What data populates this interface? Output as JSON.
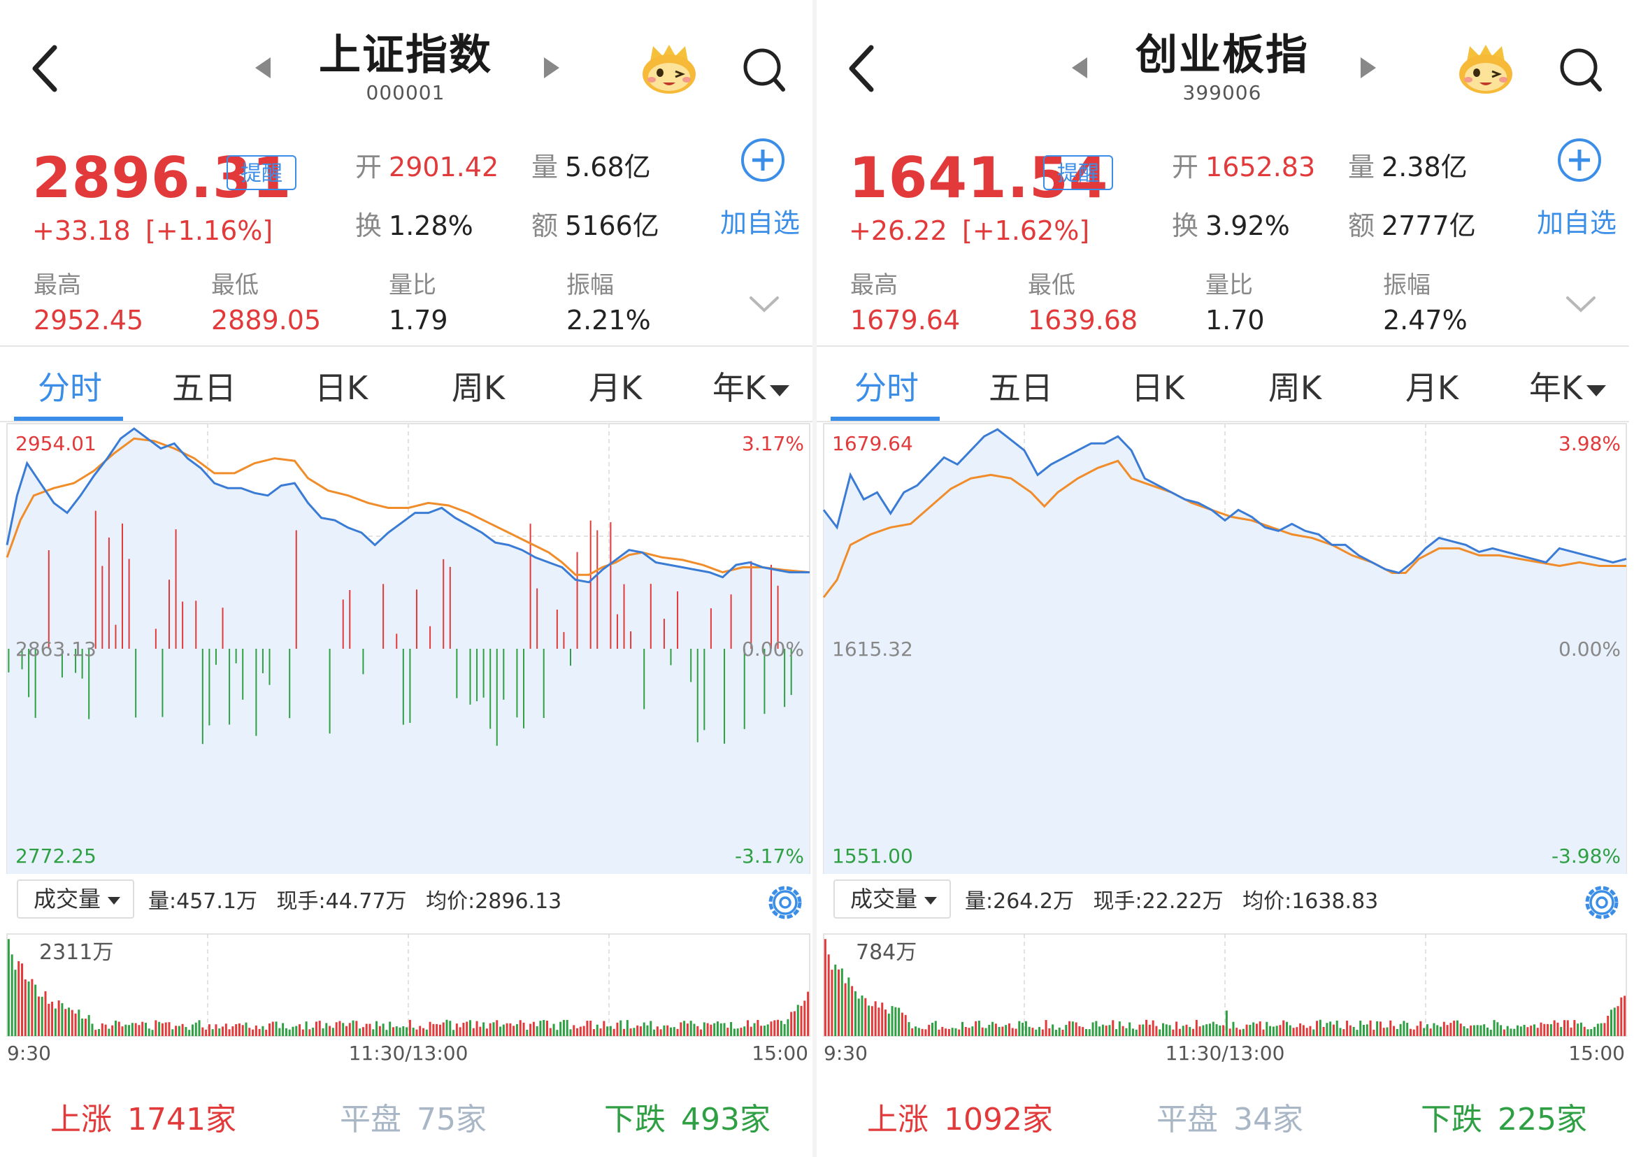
{
  "colors": {
    "up": "#e23a3a",
    "down": "#2ea043",
    "accent": "#3b8ee8",
    "price_line": "#3a7bd5",
    "avg_line": "#f08c2a",
    "fill": "#e8f1fc",
    "grid": "#d9d9d9"
  },
  "icons": {
    "back": "back-chevron-icon",
    "prev": "prev-triangle-icon",
    "next": "next-triangle-icon",
    "mascot": "mascot-icon",
    "search": "search-icon",
    "add": "plus-circle-icon",
    "expand": "chevron-down-icon",
    "settings": "gear-icon"
  },
  "tabs": [
    "分时",
    "五日",
    "日K",
    "周K",
    "月K",
    "年K"
  ],
  "labels": {
    "open": "开",
    "volume": "量",
    "turnover": "换",
    "amount": "额",
    "high": "最高",
    "low": "最低",
    "vol_ratio": "量比",
    "amplitude": "振幅",
    "alert": "提醒",
    "add_watch": "加自选",
    "vol_select": "成交量",
    "up": "上涨",
    "flat": "平盘",
    "down": "下跌"
  },
  "panels": [
    {
      "title": "上证指数",
      "code": "000001",
      "price": "2896.31",
      "change": "+33.18",
      "change_pct": "[+1.16%]",
      "open": "2901.42",
      "volume": "5.68亿",
      "turnover": "1.28%",
      "amount": "5166亿",
      "high": "2952.45",
      "low": "2889.05",
      "vol_ratio": "1.79",
      "amplitude": "2.21%",
      "axis": {
        "top_left": "2954.01",
        "top_right": "3.17%",
        "mid_left": "2863.13",
        "mid_right": "0.00%",
        "bot_left": "2772.25",
        "bot_right": "-3.17%"
      },
      "vol_stats": {
        "vol": "量:457.1万",
        "now": "现手:44.77万",
        "avg": "均价:2896.13"
      },
      "vol_max": "2311万",
      "time": {
        "start": "9:30",
        "mid": "11:30/13:00",
        "end": "15:00"
      },
      "breadth": {
        "up_count": "1741家",
        "flat_count": "75家",
        "down_count": "493家"
      },
      "chart_data": {
        "type": "line",
        "ylim": [
          2772.25,
          2954.01
        ],
        "base": 2863.13,
        "x_range": [
          0,
          240
        ],
        "series": [
          {
            "role": "price",
            "points": [
              [
                0,
                2905
              ],
              [
                3,
                2925
              ],
              [
                6,
                2938
              ],
              [
                10,
                2930
              ],
              [
                14,
                2922
              ],
              [
                18,
                2918
              ],
              [
                22,
                2925
              ],
              [
                26,
                2933
              ],
              [
                30,
                2940
              ],
              [
                34,
                2948
              ],
              [
                38,
                2952
              ],
              [
                42,
                2948
              ],
              [
                46,
                2944
              ],
              [
                50,
                2946
              ],
              [
                54,
                2940
              ],
              [
                58,
                2936
              ],
              [
                62,
                2930
              ],
              [
                66,
                2928
              ],
              [
                70,
                2928
              ],
              [
                74,
                2926
              ],
              [
                78,
                2925
              ],
              [
                82,
                2929
              ],
              [
                86,
                2930
              ],
              [
                90,
                2922
              ],
              [
                94,
                2916
              ],
              [
                98,
                2915
              ],
              [
                102,
                2912
              ],
              [
                106,
                2910
              ],
              [
                110,
                2905
              ],
              [
                114,
                2910
              ],
              [
                118,
                2914
              ],
              [
                122,
                2918
              ],
              [
                126,
                2918
              ],
              [
                130,
                2920
              ],
              [
                134,
                2916
              ],
              [
                138,
                2913
              ],
              [
                142,
                2910
              ],
              [
                146,
                2906
              ],
              [
                150,
                2905
              ],
              [
                154,
                2903
              ],
              [
                158,
                2900
              ],
              [
                162,
                2898
              ],
              [
                166,
                2896
              ],
              [
                170,
                2891
              ],
              [
                174,
                2890
              ],
              [
                178,
                2895
              ],
              [
                182,
                2899
              ],
              [
                186,
                2903
              ],
              [
                190,
                2902
              ],
              [
                194,
                2898
              ],
              [
                198,
                2897
              ],
              [
                202,
                2896
              ],
              [
                206,
                2895
              ],
              [
                210,
                2894
              ],
              [
                214,
                2892
              ],
              [
                218,
                2897
              ],
              [
                222,
                2898
              ],
              [
                226,
                2896
              ],
              [
                230,
                2895
              ],
              [
                234,
                2894
              ],
              [
                240,
                2894
              ]
            ]
          },
          {
            "role": "avg",
            "points": [
              [
                0,
                2900
              ],
              [
                4,
                2915
              ],
              [
                8,
                2925
              ],
              [
                14,
                2928
              ],
              [
                20,
                2930
              ],
              [
                26,
                2935
              ],
              [
                32,
                2942
              ],
              [
                38,
                2948
              ],
              [
                44,
                2947
              ],
              [
                50,
                2944
              ],
              [
                56,
                2940
              ],
              [
                62,
                2934
              ],
              [
                68,
                2934
              ],
              [
                74,
                2938
              ],
              [
                80,
                2940
              ],
              [
                86,
                2939
              ],
              [
                90,
                2932
              ],
              [
                96,
                2927
              ],
              [
                102,
                2925
              ],
              [
                108,
                2922
              ],
              [
                114,
                2920
              ],
              [
                120,
                2920
              ],
              [
                126,
                2922
              ],
              [
                132,
                2921
              ],
              [
                138,
                2918
              ],
              [
                144,
                2914
              ],
              [
                150,
                2910
              ],
              [
                156,
                2906
              ],
              [
                162,
                2902
              ],
              [
                166,
                2898
              ],
              [
                170,
                2893
              ],
              [
                174,
                2893
              ],
              [
                178,
                2896
              ],
              [
                182,
                2898
              ],
              [
                186,
                2901
              ],
              [
                190,
                2902
              ],
              [
                196,
                2900
              ],
              [
                202,
                2899
              ],
              [
                208,
                2897
              ],
              [
                214,
                2894
              ],
              [
                220,
                2896
              ],
              [
                226,
                2896
              ],
              [
                232,
                2895
              ],
              [
                240,
                2894
              ]
            ]
          }
        ]
      }
    },
    {
      "title": "创业板指",
      "code": "399006",
      "price": "1641.54",
      "change": "+26.22",
      "change_pct": "[+1.62%]",
      "open": "1652.83",
      "volume": "2.38亿",
      "turnover": "3.92%",
      "amount": "2777亿",
      "high": "1679.64",
      "low": "1639.68",
      "vol_ratio": "1.70",
      "amplitude": "2.47%",
      "axis": {
        "top_left": "1679.64",
        "top_right": "3.98%",
        "mid_left": "1615.32",
        "mid_right": "0.00%",
        "bot_left": "1551.00",
        "bot_right": "-3.98%"
      },
      "vol_stats": {
        "vol": "量:264.2万",
        "now": "现手:22.22万",
        "avg": "均价:1638.83"
      },
      "vol_max": "784万",
      "time": {
        "start": "9:30",
        "mid": "11:30/13:00",
        "end": "15:00"
      },
      "breadth": {
        "up_count": "1092家",
        "flat_count": "34家",
        "down_count": "225家"
      },
      "chart_data": {
        "type": "line",
        "ylim": [
          1551.0,
          1679.64
        ],
        "base": 1615.32,
        "x_range": [
          0,
          240
        ],
        "series": [
          {
            "role": "price",
            "points": [
              [
                0,
                1655
              ],
              [
                4,
                1650
              ],
              [
                8,
                1665
              ],
              [
                12,
                1658
              ],
              [
                16,
                1660
              ],
              [
                20,
                1654
              ],
              [
                24,
                1660
              ],
              [
                28,
                1662
              ],
              [
                32,
                1666
              ],
              [
                36,
                1670
              ],
              [
                40,
                1668
              ],
              [
                44,
                1672
              ],
              [
                48,
                1676
              ],
              [
                52,
                1678
              ],
              [
                56,
                1675
              ],
              [
                60,
                1672
              ],
              [
                64,
                1665
              ],
              [
                68,
                1668
              ],
              [
                72,
                1670
              ],
              [
                76,
                1672
              ],
              [
                80,
                1674
              ],
              [
                84,
                1674
              ],
              [
                88,
                1676
              ],
              [
                92,
                1672
              ],
              [
                96,
                1664
              ],
              [
                100,
                1662
              ],
              [
                104,
                1660
              ],
              [
                108,
                1658
              ],
              [
                112,
                1657
              ],
              [
                116,
                1655
              ],
              [
                120,
                1652
              ],
              [
                124,
                1655
              ],
              [
                128,
                1653
              ],
              [
                132,
                1650
              ],
              [
                136,
                1649
              ],
              [
                140,
                1651
              ],
              [
                144,
                1649
              ],
              [
                148,
                1648
              ],
              [
                152,
                1645
              ],
              [
                156,
                1645
              ],
              [
                160,
                1642
              ],
              [
                164,
                1640
              ],
              [
                168,
                1638
              ],
              [
                172,
                1637
              ],
              [
                176,
                1640
              ],
              [
                180,
                1644
              ],
              [
                184,
                1647
              ],
              [
                188,
                1646
              ],
              [
                192,
                1645
              ],
              [
                196,
                1643
              ],
              [
                200,
                1644
              ],
              [
                204,
                1643
              ],
              [
                208,
                1642
              ],
              [
                212,
                1641
              ],
              [
                216,
                1640
              ],
              [
                220,
                1644
              ],
              [
                224,
                1643
              ],
              [
                228,
                1642
              ],
              [
                232,
                1641
              ],
              [
                236,
                1640
              ],
              [
                240,
                1641
              ]
            ]
          },
          {
            "role": "avg",
            "points": [
              [
                0,
                1630
              ],
              [
                4,
                1635
              ],
              [
                8,
                1645
              ],
              [
                14,
                1648
              ],
              [
                20,
                1650
              ],
              [
                26,
                1651
              ],
              [
                32,
                1656
              ],
              [
                38,
                1661
              ],
              [
                44,
                1664
              ],
              [
                50,
                1665
              ],
              [
                56,
                1664
              ],
              [
                62,
                1660
              ],
              [
                66,
                1656
              ],
              [
                70,
                1660
              ],
              [
                76,
                1664
              ],
              [
                82,
                1667
              ],
              [
                88,
                1669
              ],
              [
                92,
                1664
              ],
              [
                98,
                1662
              ],
              [
                104,
                1660
              ],
              [
                110,
                1657
              ],
              [
                116,
                1655
              ],
              [
                122,
                1653
              ],
              [
                128,
                1652
              ],
              [
                134,
                1650
              ],
              [
                140,
                1648
              ],
              [
                146,
                1647
              ],
              [
                152,
                1645
              ],
              [
                158,
                1642
              ],
              [
                164,
                1640
              ],
              [
                170,
                1637
              ],
              [
                174,
                1637
              ],
              [
                178,
                1641
              ],
              [
                184,
                1644
              ],
              [
                190,
                1644
              ],
              [
                196,
                1642
              ],
              [
                202,
                1642
              ],
              [
                208,
                1641
              ],
              [
                214,
                1640
              ],
              [
                220,
                1639
              ],
              [
                226,
                1640
              ],
              [
                232,
                1639
              ],
              [
                240,
                1639
              ]
            ]
          }
        ]
      }
    }
  ]
}
